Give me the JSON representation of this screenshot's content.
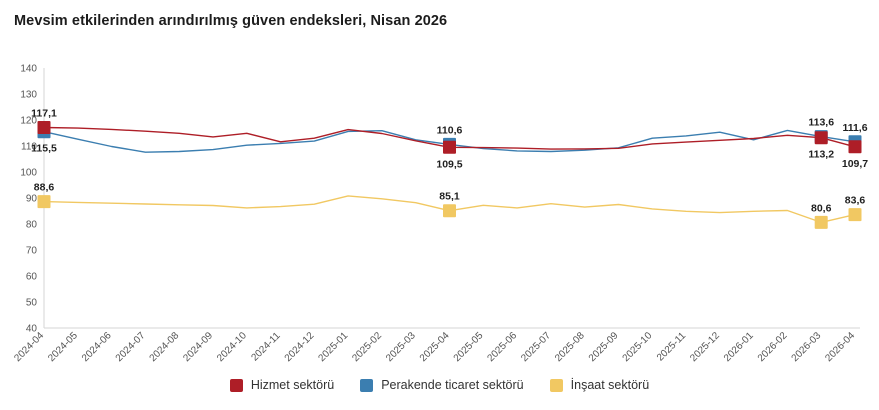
{
  "title": "Mevsim etkilerinden arındırılmış güven endeksleri, Nisan 2026",
  "colors": {
    "hizmet": "#ae1e27",
    "perakende": "#3b7eb0",
    "insaat": "#f1c862",
    "axis": "#d6d6d6",
    "tick_text": "#555555",
    "label_text": "#1f1f1f"
  },
  "chart_data": {
    "type": "line",
    "title": "Mevsim etkilerinden arındırılmış güven endeksleri, Nisan 2026",
    "xlabel": "",
    "ylabel": "",
    "ylim": [
      40,
      140
    ],
    "y_ticks": [
      40,
      50,
      60,
      70,
      80,
      90,
      100,
      110,
      120,
      130,
      140
    ],
    "grid": false,
    "legend_position": "bottom",
    "x_labels": [
      "2024-04",
      "2024-05",
      "2024-06",
      "2024-07",
      "2024-08",
      "2024-09",
      "2024-10",
      "2024-11",
      "2024-12",
      "2025-01",
      "2025-02",
      "2025-03",
      "2025-04",
      "2025-05",
      "2025-06",
      "2025-07",
      "2025-08",
      "2025-09",
      "2025-10",
      "2025-11",
      "2025-12",
      "2026-01",
      "2026-02",
      "2026-03",
      "2026-04"
    ],
    "marker_indices": [
      0,
      12,
      23,
      24
    ],
    "series": [
      {
        "name": "İnşaat sektörü",
        "key": "insaat",
        "color": "#f1c862",
        "values": [
          88.6,
          88.3,
          88.0,
          87.7,
          87.4,
          87.1,
          86.2,
          86.7,
          87.6,
          90.8,
          89.7,
          88.2,
          85.1,
          87.2,
          86.2,
          87.8,
          86.5,
          87.5,
          85.8,
          84.9,
          84.4,
          84.9,
          85.2,
          80.6,
          83.6
        ]
      },
      {
        "name": "Perakende ticaret sektörü",
        "key": "perakende",
        "color": "#3b7eb0",
        "values": [
          115.5,
          112.6,
          109.8,
          107.6,
          107.9,
          108.6,
          110.3,
          111.0,
          111.9,
          115.6,
          115.9,
          112.4,
          110.6,
          109.0,
          108.1,
          107.9,
          108.4,
          109.3,
          113.0,
          113.9,
          115.3,
          112.4,
          116.0,
          113.6,
          111.6
        ]
      },
      {
        "name": "Hizmet sektörü",
        "key": "hizmet",
        "color": "#ae1e27",
        "values": [
          117.1,
          116.9,
          116.4,
          115.7,
          114.9,
          113.5,
          114.9,
          111.6,
          113.0,
          116.3,
          114.8,
          112.0,
          109.5,
          109.4,
          109.2,
          108.8,
          108.9,
          109.1,
          110.8,
          111.5,
          112.2,
          112.9,
          114.1,
          113.2,
          109.7
        ]
      }
    ],
    "annotations": [
      {
        "series_key": "hizmet",
        "index": 0,
        "text": "117,1",
        "placement": "above"
      },
      {
        "series_key": "perakende",
        "index": 0,
        "text": "115,5",
        "placement": "below"
      },
      {
        "series_key": "insaat",
        "index": 0,
        "text": "88,6",
        "placement": "above"
      },
      {
        "series_key": "perakende",
        "index": 12,
        "text": "110,6",
        "placement": "above"
      },
      {
        "series_key": "hizmet",
        "index": 12,
        "text": "109,5",
        "placement": "below"
      },
      {
        "series_key": "insaat",
        "index": 12,
        "text": "85,1",
        "placement": "above"
      },
      {
        "series_key": "perakende",
        "index": 23,
        "text": "113,6",
        "placement": "above"
      },
      {
        "series_key": "hizmet",
        "index": 23,
        "text": "113,2",
        "placement": "below"
      },
      {
        "series_key": "insaat",
        "index": 23,
        "text": "80,6",
        "placement": "above"
      },
      {
        "series_key": "perakende",
        "index": 24,
        "text": "111,6",
        "placement": "above"
      },
      {
        "series_key": "hizmet",
        "index": 24,
        "text": "109,7",
        "placement": "below"
      },
      {
        "series_key": "insaat",
        "index": 24,
        "text": "83,6",
        "placement": "above"
      }
    ],
    "legend": [
      {
        "key": "hizmet",
        "label": "Hizmet sektörü",
        "color": "#ae1e27"
      },
      {
        "key": "perakende",
        "label": "Perakende ticaret sektörü",
        "color": "#3b7eb0"
      },
      {
        "key": "insaat",
        "label": "İnşaat sektörü",
        "color": "#f1c862"
      }
    ]
  }
}
